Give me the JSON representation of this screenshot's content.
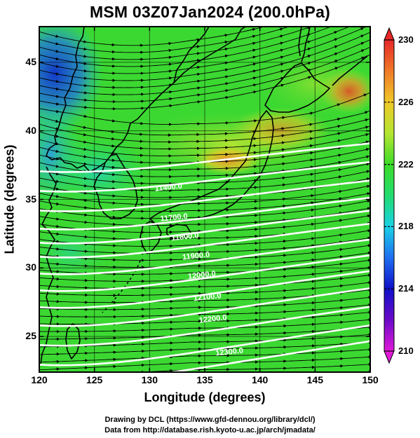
{
  "title": "MSM 03Z07Jan2024 (200.0hPa)",
  "xlabel": "Longitude (degrees)",
  "ylabel": "Latitude  (degrees)",
  "credit_line1": "Drawing by DCL (https://www.gfd-dennou.org/library/dcl/)",
  "credit_line2": "Data from http://database.rish.kyoto-u.ac.jp/arch/jmadata/",
  "colors": {
    "background_field": "#3cd832",
    "contour": "#ffffff",
    "streamline": "#000000",
    "coast": "#000000"
  },
  "chart_data": {
    "type": "heatmap",
    "x_range": [
      120,
      150
    ],
    "y_range": [
      22.4,
      47.6
    ],
    "x_ticks": [
      120,
      125,
      130,
      135,
      140,
      145,
      150
    ],
    "y_ticks": [
      25,
      30,
      35,
      40,
      45
    ],
    "colorbar": {
      "min": 210,
      "max": 230,
      "ticks": [
        210,
        214,
        218,
        222,
        226,
        230
      ],
      "stops": [
        {
          "v": 210,
          "c": "#e01ad8"
        },
        {
          "v": 212,
          "c": "#6b0ac8"
        },
        {
          "v": 214,
          "c": "#1010c8"
        },
        {
          "v": 216,
          "c": "#1e6ef0"
        },
        {
          "v": 218,
          "c": "#1ad2e6"
        },
        {
          "v": 220,
          "c": "#22dc6e"
        },
        {
          "v": 222,
          "c": "#3cdc28"
        },
        {
          "v": 224,
          "c": "#b4e632"
        },
        {
          "v": 226,
          "c": "#f0c828"
        },
        {
          "v": 228,
          "c": "#f07a28"
        },
        {
          "v": 230,
          "c": "#e62828"
        }
      ]
    },
    "temperature_features": [
      {
        "lon": 122,
        "lat": 45,
        "value": 214
      },
      {
        "lon": 121,
        "lat": 41,
        "value": 216
      },
      {
        "lon": 124,
        "lat": 38,
        "value": 219
      },
      {
        "lon": 137,
        "lat": 39,
        "value": 226
      },
      {
        "lon": 142,
        "lat": 40.5,
        "value": 225
      },
      {
        "lon": 148,
        "lat": 43.5,
        "value": 228
      }
    ],
    "contour_labels": [
      {
        "text": "11400.0",
        "lon": 130.5,
        "lat": 35.6
      },
      {
        "text": "11700.0",
        "lon": 131.0,
        "lat": 33.4
      },
      {
        "text": "11800.0",
        "lon": 132.0,
        "lat": 32.0
      },
      {
        "text": "11900.0",
        "lon": 133.0,
        "lat": 30.6
      },
      {
        "text": "12000.0",
        "lon": 133.5,
        "lat": 29.2
      },
      {
        "text": "12100.0",
        "lon": 134.0,
        "lat": 27.6
      },
      {
        "text": "12200.0",
        "lon": 134.5,
        "lat": 26.0
      },
      {
        "text": "12300.0",
        "lon": 136.0,
        "lat": 23.6
      }
    ]
  }
}
